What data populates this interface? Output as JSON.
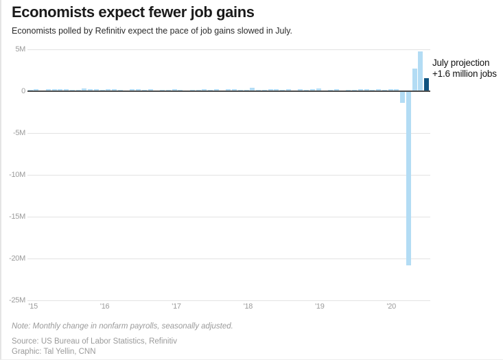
{
  "header": {
    "title": "Economists expect fewer job gains",
    "subtitle": "Economists polled by Refinitiv expect the pace of job gains slowed in July."
  },
  "annotation": {
    "line1": "July projection",
    "line2": "+1.6 million jobs"
  },
  "footer": {
    "note": "Note: Monthly change in nonfarm payrolls, seasonally adjusted.",
    "source": "Source: US Bureau of Labor Statistics, Refinitiv",
    "credit": "Graphic: Tal Yellin, CNN"
  },
  "colors": {
    "bar": "#b3dcf4",
    "projection_bar": "#0e527f",
    "grid": "#e2e2e2",
    "zero_line": "#4a4a4a",
    "axis_text": "#9a9a9a",
    "title_text": "#1a1a1a"
  },
  "chart_data": {
    "type": "bar",
    "title": "Economists expect fewer job gains",
    "subtitle": "Economists polled by Refinitiv expect the pace of job gains slowed in July.",
    "xlabel": "",
    "ylabel": "Monthly change in nonfarm payrolls (millions)",
    "unit": "millions of jobs",
    "x_start": "2015-01",
    "x_end": "2020-07",
    "x_frequency": "monthly",
    "ylim": [
      -25,
      5
    ],
    "ytick_values": [
      5,
      0,
      -5,
      -10,
      -15,
      -20,
      -25
    ],
    "ytick_labels": [
      "5M",
      "0",
      "-5M",
      "-10M",
      "-15M",
      "-20M",
      "-25M"
    ],
    "xtick_labels": [
      "'15",
      "'16",
      "'17",
      "'18",
      "'19",
      "'20"
    ],
    "grid": true,
    "legend": false,
    "values": [
      0.2,
      0.27,
      0.08,
      0.25,
      0.27,
      0.23,
      0.28,
      0.15,
      0.15,
      0.3,
      0.28,
      0.27,
      0.17,
      0.24,
      0.23,
      0.15,
      0.04,
      0.27,
      0.25,
      0.18,
      0.25,
      0.12,
      0.16,
      0.16,
      0.26,
      0.2,
      0.07,
      0.18,
      0.15,
      0.23,
      0.19,
      0.21,
      0.01,
      0.27,
      0.22,
      0.18,
      0.18,
      0.4,
      0.15,
      0.18,
      0.27,
      0.25,
      0.16,
      0.28,
      0.11,
      0.28,
      0.15,
      0.23,
      0.31,
      0.02,
      0.15,
      0.22,
      0.07,
      0.18,
      0.19,
      0.21,
      0.21,
      0.19,
      0.26,
      0.18,
      0.21,
      0.25,
      -1.37,
      -20.79,
      2.73,
      4.79,
      1.6
    ],
    "projection": {
      "index": 66,
      "label": "July projection",
      "value": 1.6,
      "value_label": "+1.6 million jobs"
    }
  }
}
